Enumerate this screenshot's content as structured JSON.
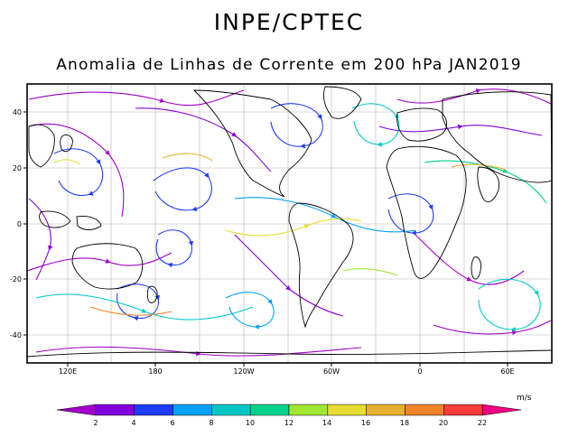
{
  "header": {
    "title": "INPE/CPTEC",
    "subtitle": "Anomalia de Linhas de Corrente em 200 hPa JAN2019"
  },
  "map": {
    "lat_range": [
      -50,
      50
    ],
    "lat_ticks": [
      "40",
      "20",
      "0",
      "-20",
      "-40"
    ],
    "lon_ticks": [
      "120E",
      "180",
      "120W",
      "60W",
      "0",
      "60E"
    ]
  },
  "colorbar": {
    "unit": "m/s",
    "labels": [
      "2",
      "4",
      "6",
      "8",
      "10",
      "12",
      "14",
      "16",
      "18",
      "20",
      "22"
    ],
    "colors": [
      "#a000c8",
      "#8200dc",
      "#1e3cff",
      "#00a0ff",
      "#00c8c8",
      "#00d28c",
      "#a0e632",
      "#e6dc32",
      "#e6af2d",
      "#f08228",
      "#fa3c3c",
      "#f00082"
    ]
  }
}
